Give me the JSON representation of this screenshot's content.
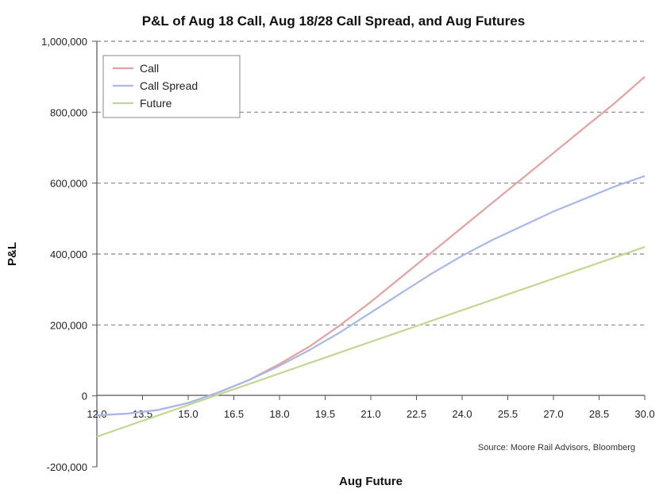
{
  "chart_data": {
    "type": "line",
    "title": "P&L of Aug 18 Call, Aug 18/28 Call Spread, and Aug Futures",
    "xlabel": "Aug Future",
    "ylabel": "P&L",
    "xlim": [
      12.0,
      30.0
    ],
    "ylim": [
      -200000,
      1000000
    ],
    "x_ticks": [
      "12.0",
      "13.5",
      "15.0",
      "16.5",
      "18.0",
      "19.5",
      "21.0",
      "22.5",
      "24.0",
      "25.5",
      "27.0",
      "28.5",
      "30.0"
    ],
    "y_ticks": [
      {
        "value": 1000000,
        "label": "1,000,000"
      },
      {
        "value": 800000,
        "label": "800,000"
      },
      {
        "value": 600000,
        "label": "600,000"
      },
      {
        "value": 400000,
        "label": "400,000"
      },
      {
        "value": 200000,
        "label": "200,000"
      },
      {
        "value": 0,
        "label": "0"
      },
      {
        "value": -200000,
        "label": "-200,000"
      }
    ],
    "grid": "horizontal dashed",
    "legend_position": "top-left",
    "annotation": "Source: Moore Rail Advisors, Bloomberg",
    "series": [
      {
        "name": "Call",
        "color": "#e8a0a0",
        "x": [
          12.0,
          13.0,
          14.0,
          15.0,
          16.0,
          17.0,
          18.0,
          19.0,
          20.0,
          21.0,
          22.0,
          23.0,
          24.0,
          25.0,
          26.0,
          27.0,
          28.0,
          29.0,
          30.0
        ],
        "y": [
          -55000,
          -50000,
          -40000,
          -20000,
          10000,
          45000,
          90000,
          140000,
          200000,
          265000,
          335000,
          405000,
          475000,
          545000,
          615000,
          685000,
          755000,
          825000,
          900000
        ]
      },
      {
        "name": "Call Spread",
        "color": "#a8b8e8",
        "x": [
          12.0,
          13.0,
          14.0,
          15.0,
          16.0,
          17.0,
          18.0,
          19.0,
          20.0,
          21.0,
          22.0,
          23.0,
          24.0,
          25.0,
          26.0,
          27.0,
          28.0,
          29.0,
          30.0
        ],
        "y": [
          -55000,
          -50000,
          -40000,
          -20000,
          10000,
          45000,
          85000,
          130000,
          180000,
          235000,
          290000,
          345000,
          395000,
          440000,
          480000,
          520000,
          555000,
          590000,
          620000
        ]
      },
      {
        "name": "Future",
        "color": "#c0d890",
        "x": [
          12.0,
          30.0
        ],
        "y": [
          -115000,
          420000
        ]
      }
    ]
  }
}
